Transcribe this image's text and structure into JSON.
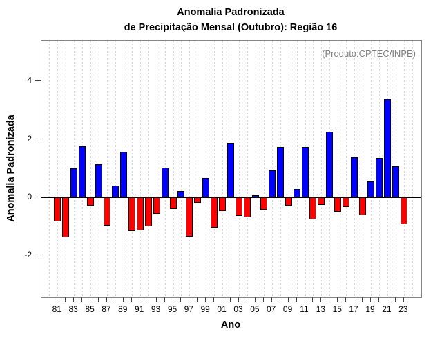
{
  "title": {
    "line1": "Anomalia Padronizada",
    "line2": "de Precipitação Mensal (Outubro): Região 16"
  },
  "annotation": "(Produto:CPTEC/INPE)",
  "chart_data": {
    "type": "bar",
    "title": "Anomalia Padronizada de Precipitação Mensal (Outubro): Região 16",
    "xlabel": "Ano",
    "ylabel": "Anomalia Padronizada",
    "categories": [
      "81",
      "82",
      "83",
      "84",
      "85",
      "86",
      "87",
      "88",
      "89",
      "90",
      "91",
      "92",
      "93",
      "94",
      "95",
      "96",
      "97",
      "98",
      "99",
      "00",
      "01",
      "02",
      "03",
      "04",
      "05",
      "06",
      "07",
      "08",
      "09",
      "10",
      "11",
      "12",
      "13",
      "14",
      "15",
      "16",
      "17",
      "18",
      "19",
      "20",
      "21",
      "22",
      "23"
    ],
    "values": [
      -0.83,
      -1.37,
      0.99,
      1.76,
      -0.28,
      1.15,
      -0.97,
      0.4,
      1.57,
      -1.17,
      -1.13,
      -0.99,
      -0.58,
      1.03,
      -0.4,
      0.22,
      -1.35,
      -0.18,
      0.66,
      -1.05,
      -0.47,
      1.88,
      -0.63,
      -0.69,
      0.07,
      -0.43,
      0.93,
      1.74,
      -0.29,
      0.28,
      1.74,
      -0.75,
      -0.25,
      2.25,
      -0.51,
      -0.33,
      1.37,
      -0.62,
      0.55,
      1.36,
      3.37,
      1.07,
      -0.93
    ],
    "x_tick_labels_shown": [
      "81",
      "83",
      "85",
      "87",
      "89",
      "91",
      "93",
      "95",
      "97",
      "99",
      "01",
      "03",
      "05",
      "07",
      "09",
      "11",
      "13",
      "15",
      "17",
      "19",
      "21",
      "23"
    ],
    "yticks": [
      -2,
      0,
      2,
      4
    ],
    "ytick_labels": [
      "-2",
      "0",
      "2",
      "4"
    ],
    "ylim": [
      -3.45,
      5.4
    ],
    "positive_color": "#0000ff",
    "negative_color": "#ff0000",
    "grid": "vertical dotted lines at every year",
    "legend": "none",
    "zero_line": true
  },
  "colors": {
    "positive_bar": "#0000ff",
    "negative_bar": "#ff0000",
    "plot_border": "#858585",
    "annotation_text": "#7f7f7f",
    "gridline": "#dcdcdc"
  }
}
